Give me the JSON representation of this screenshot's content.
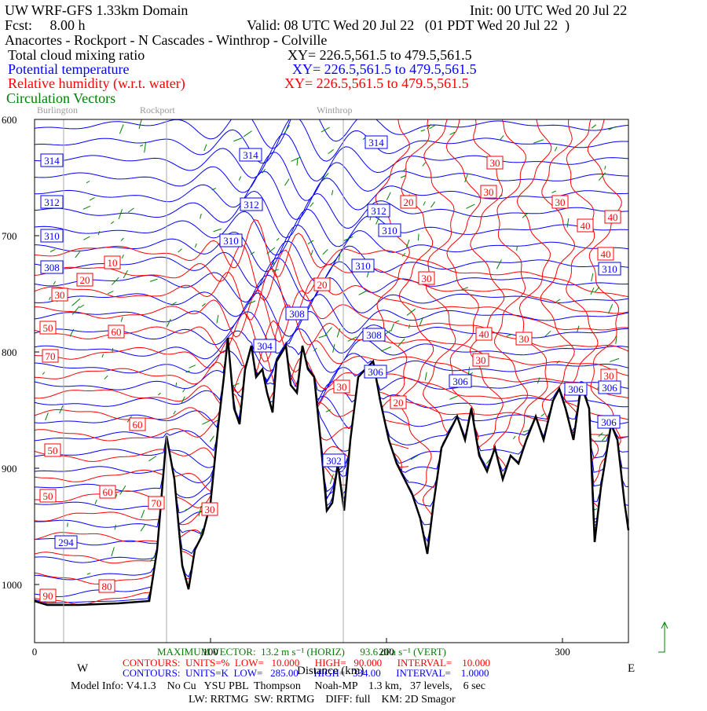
{
  "header": {
    "title": "UW WRF-GFS 1.33km Domain",
    "init": "Init: 00 UTC Wed 20 Jul 22",
    "fcst": "Fcst:     8.00 h",
    "valid": "Valid: 08 UTC Wed 20 Jul 22   (01 PDT Wed 20 Jul 22  )",
    "route": "Anacortes - Rockport - N Cascades - Winthrop - Colville"
  },
  "fields": [
    {
      "name": "Total cloud mixing ratio",
      "xy": "XY= 226.5,561.5 to 479.5,561.5"
    },
    {
      "name": "Potential temperature",
      "xy": "XY= 226.5,561.5 to 479.5,561.5"
    },
    {
      "name": "Relative humidity (w.r.t. water)",
      "xy": "XY= 226.5,561.5 to 479.5,561.5"
    },
    {
      "name": "Circulation Vectors"
    }
  ],
  "locations": [
    "Burlington",
    "Rockport",
    "Winthrop"
  ],
  "axes": {
    "yticks": [
      600,
      700,
      800,
      900,
      1000
    ],
    "ylim": [
      600,
      1050
    ],
    "xticks": [
      0,
      100,
      200,
      300
    ],
    "xlim": [
      0,
      337.5
    ],
    "xlabel": "Distance (km)",
    "west": "W",
    "east": "E"
  },
  "contour_labels": {
    "rh": [
      "30",
      "30",
      "20",
      "30",
      "40",
      "40",
      "40",
      "10",
      "30",
      "20",
      "20",
      "30",
      "50",
      "60",
      "40",
      "30",
      "70",
      "30",
      "30",
      "30",
      "20",
      "60",
      "50",
      "60",
      "50",
      "70",
      "30",
      "80",
      "90"
    ],
    "theta": [
      "314",
      "314",
      "314",
      "312",
      "312",
      "312",
      "310",
      "310",
      "310",
      "310",
      "310",
      "308",
      "308",
      "308",
      "306",
      "306",
      "306",
      "306",
      "306",
      "304",
      "302",
      "294"
    ]
  },
  "footer": {
    "max_vector": "MAXIMUM VECTOR:  13.2 m s⁻¹ (HORIZ)      93.6 dPa s⁻¹ (VERT)",
    "rh_contours": "CONTOURS:  UNITS=%  LOW=   10.000      HIGH=   90.000      INTERVAL=    10.000",
    "theta_contours": "CONTOURS:  UNITS=K  LOW=   285.00      HIGH=   334.00      INTERVAL=    1.0000",
    "model_info": "Model Info: V4.1.3    No Cu   YSU PBL  Thompson     Noah-MP    1.3 km,   37 levels,    6 sec",
    "physics": "LW: RRTMG  SW: RRTMG    DIFF: full    KM: 2D Smagor"
  }
}
